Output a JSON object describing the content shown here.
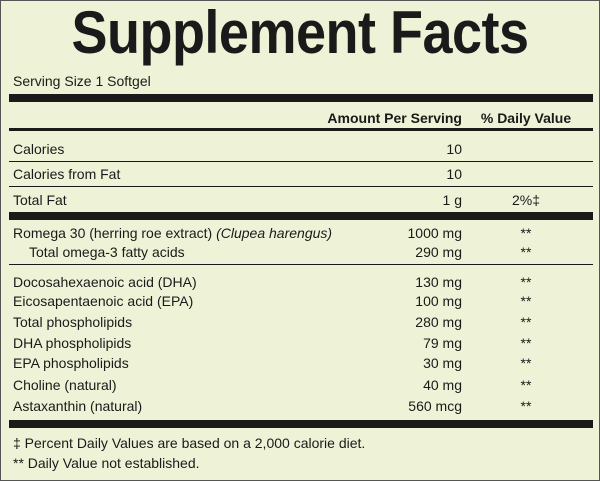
{
  "header": {
    "title": "Supplement Facts",
    "serving_size": "Serving Size 1 Softgel"
  },
  "table": {
    "columns": [
      "Amount Per Serving",
      "% Daily Value"
    ],
    "rows": [
      {
        "name": "Calories",
        "amount": "10"
      },
      {
        "name": "Calories from Fat",
        "amount": "10"
      },
      {
        "name": "Total Fat",
        "amount": "1 g",
        "daily_value": "2%‡"
      },
      {
        "name": "Romega 30 (herring roe extract)",
        "name_italic": "(Clupea harengus)",
        "amount": "1000 mg",
        "daily_value": "**"
      },
      {
        "name": "Total omega-3 fatty acids",
        "amount": "290 mg",
        "daily_value": "**"
      },
      {
        "name": "Docosahexaenoic acid (DHA)",
        "amount": "130 mg",
        "daily_value": "**"
      },
      {
        "name": "Eicosapentaenoic acid (EPA)",
        "amount": "100 mg",
        "daily_value": "**"
      },
      {
        "name": "Total phospholipids",
        "amount": "280 mg",
        "daily_value": "**"
      },
      {
        "name": "DHA phospholipids",
        "amount": "79 mg",
        "daily_value": "**"
      },
      {
        "name": "EPA phospholipids",
        "amount": "30 mg",
        "daily_value": "**"
      },
      {
        "name": "Choline (natural)",
        "amount": "40 mg",
        "daily_value": "**"
      },
      {
        "name": "Astaxanthin (natural)",
        "amount": "560 mcg",
        "daily_value": "**"
      }
    ]
  },
  "footnotes": [
    "‡  Percent Daily Values are based on a 2,000 calorie diet.",
    "** Daily Value not established."
  ]
}
